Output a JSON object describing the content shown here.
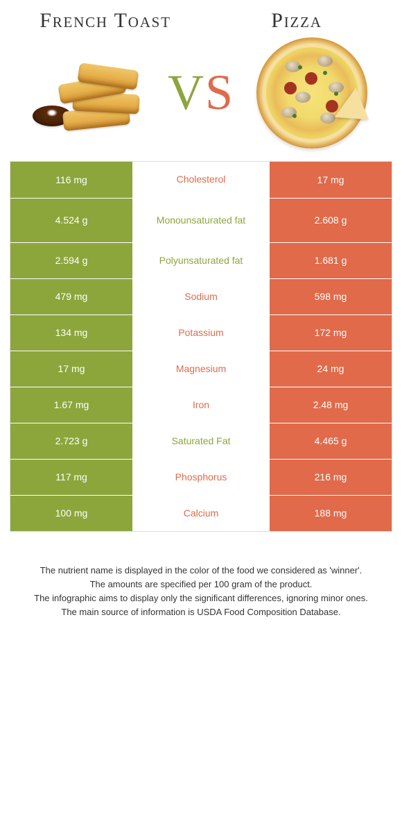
{
  "header": {
    "left_title": "French Toast",
    "right_title": "Pizza",
    "vs_v": "V",
    "vs_s": "S"
  },
  "colors": {
    "green": "#8ca63c",
    "orange": "#e06a4a",
    "bg": "#ffffff"
  },
  "rows": [
    {
      "left": "116 mg",
      "label": "Cholesterol",
      "right": "17 mg",
      "left_bg": "g",
      "right_bg": "o",
      "label_color": "o",
      "tall": false
    },
    {
      "left": "4.524 g",
      "label": "Monounsaturated fat",
      "right": "2.608 g",
      "left_bg": "g",
      "right_bg": "o",
      "label_color": "g",
      "tall": true
    },
    {
      "left": "2.594 g",
      "label": "Polyunsaturated fat",
      "right": "1.681 g",
      "left_bg": "g",
      "right_bg": "o",
      "label_color": "g",
      "tall": false
    },
    {
      "left": "479 mg",
      "label": "Sodium",
      "right": "598 mg",
      "left_bg": "g",
      "right_bg": "o",
      "label_color": "o",
      "tall": false
    },
    {
      "left": "134 mg",
      "label": "Potassium",
      "right": "172 mg",
      "left_bg": "g",
      "right_bg": "o",
      "label_color": "o",
      "tall": false
    },
    {
      "left": "17 mg",
      "label": "Magnesium",
      "right": "24 mg",
      "left_bg": "g",
      "right_bg": "o",
      "label_color": "o",
      "tall": false
    },
    {
      "left": "1.67 mg",
      "label": "Iron",
      "right": "2.48 mg",
      "left_bg": "g",
      "right_bg": "o",
      "label_color": "o",
      "tall": false
    },
    {
      "left": "2.723 g",
      "label": "Saturated Fat",
      "right": "4.465 g",
      "left_bg": "g",
      "right_bg": "o",
      "label_color": "g",
      "tall": false
    },
    {
      "left": "117 mg",
      "label": "Phosphorus",
      "right": "216 mg",
      "left_bg": "g",
      "right_bg": "o",
      "label_color": "o",
      "tall": false
    },
    {
      "left": "100 mg",
      "label": "Calcium",
      "right": "188 mg",
      "left_bg": "g",
      "right_bg": "o",
      "label_color": "o",
      "tall": false
    }
  ],
  "footer": {
    "l1": "The nutrient name is displayed in the color of the food we considered as 'winner'.",
    "l2": "The amounts are specified per 100 gram of the product.",
    "l3": "The infographic aims to display only the significant differences, ignoring minor ones.",
    "l4": "The main source of information is USDA Food Composition Database."
  }
}
